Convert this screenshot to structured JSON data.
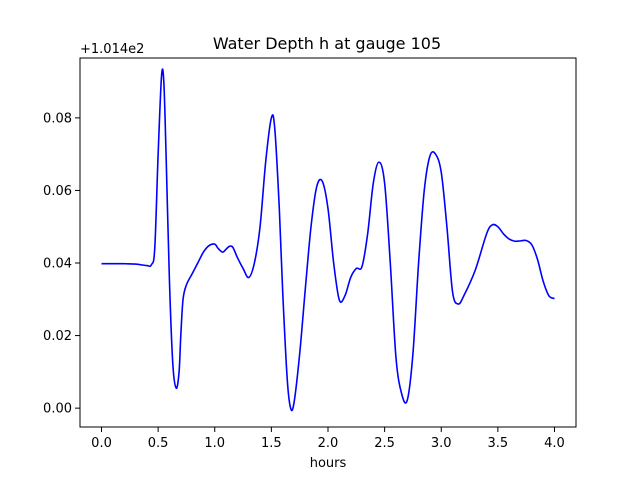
{
  "chart_data": {
    "type": "line",
    "title": "Water Depth h at gauge 105",
    "xlabel": "hours",
    "ylabel": "",
    "y_offset_label": "+1.014e2",
    "xlim": [
      -0.19,
      4.19
    ],
    "ylim": [
      -0.0052,
      0.0965
    ],
    "x_ticks": [
      0.0,
      0.5,
      1.0,
      1.5,
      2.0,
      2.5,
      3.0,
      3.5,
      4.0
    ],
    "x_tick_labels": [
      "0.0",
      "0.5",
      "1.0",
      "1.5",
      "2.0",
      "2.5",
      "3.0",
      "3.5",
      "4.0"
    ],
    "y_ticks": [
      0.0,
      0.02,
      0.04,
      0.06,
      0.08
    ],
    "y_tick_labels": [
      "0.00",
      "0.02",
      "0.04",
      "0.06",
      "0.08"
    ],
    "grid": false,
    "legend": "none",
    "line_color": "#0000ff",
    "series": [
      {
        "x": [
          0.0,
          0.2,
          0.3,
          0.4,
          0.44,
          0.47,
          0.5,
          0.53,
          0.55,
          0.57,
          0.6,
          0.63,
          0.66,
          0.685,
          0.7,
          0.72,
          0.75,
          0.8,
          0.85,
          0.9,
          0.95,
          1.0,
          1.03,
          1.07,
          1.1,
          1.13,
          1.16,
          1.2,
          1.25,
          1.3,
          1.35,
          1.4,
          1.45,
          1.5,
          1.53,
          1.57,
          1.6,
          1.64,
          1.67,
          1.7,
          1.75,
          1.8,
          1.85,
          1.9,
          1.95,
          2.0,
          2.05,
          2.1,
          2.15,
          2.2,
          2.25,
          2.3,
          2.35,
          2.4,
          2.45,
          2.5,
          2.55,
          2.6,
          2.65,
          2.7,
          2.75,
          2.8,
          2.85,
          2.9,
          2.95,
          3.0,
          3.05,
          3.1,
          3.15,
          3.2,
          3.3,
          3.4,
          3.45,
          3.5,
          3.55,
          3.6,
          3.65,
          3.7,
          3.75,
          3.8,
          3.85,
          3.9,
          3.95,
          4.0
        ],
        "y": [
          0.0398,
          0.0398,
          0.0397,
          0.0393,
          0.0395,
          0.044,
          0.07,
          0.0915,
          0.09,
          0.07,
          0.035,
          0.012,
          0.0055,
          0.01,
          0.02,
          0.03,
          0.034,
          0.037,
          0.04,
          0.043,
          0.0448,
          0.0452,
          0.044,
          0.043,
          0.0438,
          0.0446,
          0.0443,
          0.0415,
          0.0385,
          0.036,
          0.04,
          0.05,
          0.068,
          0.08,
          0.077,
          0.055,
          0.032,
          0.008,
          0.0,
          0.0015,
          0.015,
          0.033,
          0.05,
          0.061,
          0.0625,
          0.055,
          0.04,
          0.0298,
          0.031,
          0.036,
          0.0385,
          0.039,
          0.048,
          0.062,
          0.0678,
          0.062,
          0.04,
          0.014,
          0.004,
          0.0022,
          0.015,
          0.04,
          0.06,
          0.0695,
          0.07,
          0.065,
          0.05,
          0.032,
          0.0287,
          0.031,
          0.038,
          0.048,
          0.0505,
          0.05,
          0.048,
          0.0466,
          0.046,
          0.0461,
          0.0462,
          0.045,
          0.041,
          0.035,
          0.031,
          0.0302
        ]
      }
    ]
  }
}
